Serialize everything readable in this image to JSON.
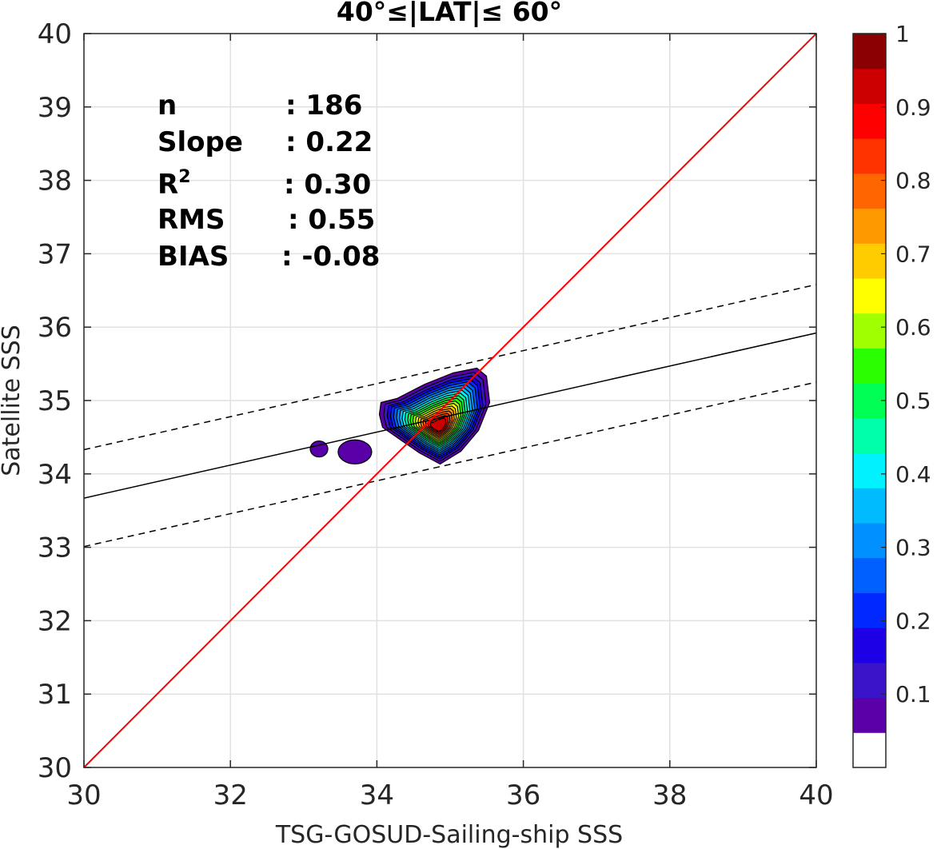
{
  "chart_data": {
    "type": "contour",
    "title": "40°≤|LAT|≤ 60°",
    "xlabel": "TSG-GOSUD-Sailing-ship SSS",
    "ylabel": "Satellite SSS",
    "xlim": [
      30,
      40
    ],
    "ylim": [
      30,
      40
    ],
    "x_ticks": [
      30,
      32,
      34,
      36,
      38,
      40
    ],
    "y_ticks": [
      30,
      31,
      32,
      33,
      34,
      35,
      36,
      37,
      38,
      39,
      40
    ],
    "grid": true,
    "stats": [
      {
        "label": "n",
        "value": ": 186"
      },
      {
        "label": "Slope",
        "value": ": 0.22"
      },
      {
        "label": "R",
        "sup": "2",
        "value": ": 0.30"
      },
      {
        "label": "RMS",
        "value": ": 0.55"
      },
      {
        "label": "BIAS",
        "value": ": -0.08"
      }
    ],
    "identity_line": {
      "color": "#ff0000",
      "from": [
        30,
        30
      ],
      "to": [
        40,
        40
      ]
    },
    "fit_line": {
      "slope": 0.22,
      "points": [
        [
          30,
          33.67
        ],
        [
          40,
          35.92
        ]
      ],
      "color": "#000000"
    },
    "upper_bound_line": {
      "points": [
        [
          30,
          34.33
        ],
        [
          40,
          36.58
        ]
      ],
      "style": "dashed"
    },
    "lower_bound_line": {
      "points": [
        [
          30,
          33.01
        ],
        [
          40,
          35.25
        ]
      ],
      "style": "dashed"
    },
    "density_center": [
      34.82,
      34.7
    ],
    "contour_levels": [
      0.05,
      0.1,
      0.15,
      0.2,
      0.25,
      0.3,
      0.35,
      0.4,
      0.45,
      0.5,
      0.55,
      0.6,
      0.65,
      0.7,
      0.75,
      0.8,
      0.85,
      0.9,
      0.95
    ],
    "small_blobs": [
      {
        "center": [
          33.21,
          34.34
        ],
        "level": 0.05
      },
      {
        "center": [
          33.7,
          34.3
        ],
        "level": 0.05
      }
    ],
    "colorbar": {
      "ticks": [
        0.1,
        0.2,
        0.3,
        0.4,
        0.5,
        0.6,
        0.7,
        0.8,
        0.9,
        1
      ],
      "tick_labels": [
        "0.1",
        "0.2",
        "0.3",
        "0.4",
        "0.5",
        "0.6",
        "0.7",
        "0.8",
        "0.9",
        "1"
      ],
      "range": [
        0,
        1
      ],
      "colors": [
        "#ffffff",
        "#5a00a8",
        "#3a14c8",
        "#1e00e6",
        "#0028ff",
        "#0060ff",
        "#0090ff",
        "#00bcff",
        "#00f2ff",
        "#00ffaa",
        "#00ff55",
        "#29ff00",
        "#a0ff00",
        "#ffff00",
        "#ffcc00",
        "#ff9900",
        "#ff6600",
        "#ff3300",
        "#ff0000",
        "#cc0000",
        "#8b0000"
      ]
    }
  }
}
